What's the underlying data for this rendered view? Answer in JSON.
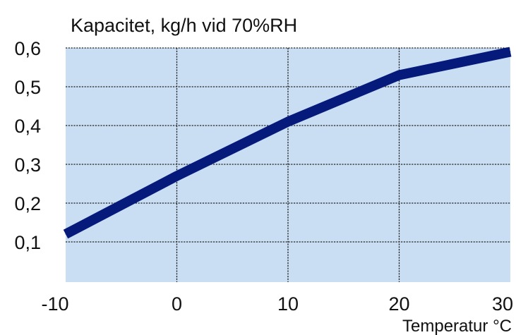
{
  "chart_data": {
    "type": "line",
    "title": "Kapacitet, kg/h vid 70%RH",
    "xlabel": "Temperatur °C",
    "ylabel": "",
    "xlim": [
      -10,
      30
    ],
    "ylim": [
      0.0,
      0.6
    ],
    "x_ticks": [
      "-10",
      "0",
      "10",
      "20",
      "30"
    ],
    "y_ticks": [
      "0,1",
      "0,2",
      "0,3",
      "0,4",
      "0,5",
      "0,6"
    ],
    "y_tick_values": [
      0.1,
      0.2,
      0.3,
      0.4,
      0.5,
      0.6
    ],
    "x_tick_values": [
      -10,
      0,
      10,
      20,
      30
    ],
    "grid": true,
    "series": [
      {
        "x": [
          -10,
          0,
          10,
          20,
          30
        ],
        "values": [
          0.12,
          0.27,
          0.41,
          0.53,
          0.59
        ]
      }
    ],
    "colors": {
      "plot_background": "#c9def3",
      "line": "#061a7c"
    }
  }
}
